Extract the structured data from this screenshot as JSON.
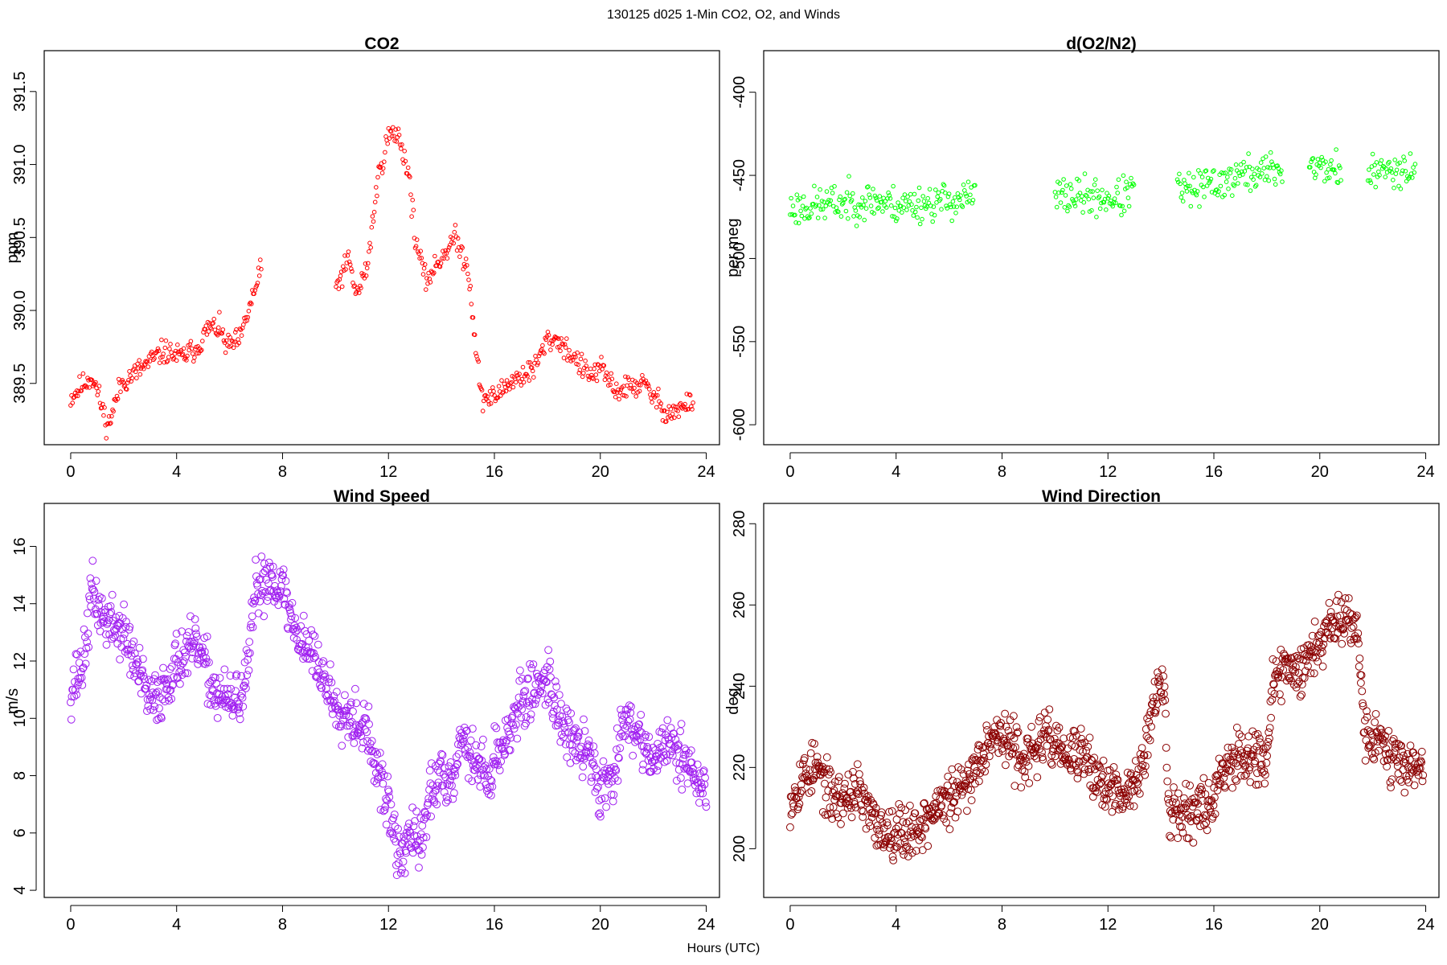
{
  "figure": {
    "suptitle": "130125   d025   1-Min CO2, O2, and Winds",
    "xlabel": "Hours (UTC)"
  },
  "colors": {
    "co2": "#ff0000",
    "o2": "#00ff00",
    "wind_speed": "#a020f0",
    "wind_direction": "#8b0000",
    "axis": "#000000"
  },
  "chart_data": [
    {
      "id": "co2",
      "type": "scatter",
      "title": "CO2",
      "xlabel": "",
      "ylabel": "ppm",
      "xlim": [
        -1,
        24.5
      ],
      "ylim": [
        389.08,
        391.78
      ],
      "xticks": [
        0,
        4,
        8,
        12,
        16,
        20,
        24
      ],
      "yticks": [
        389.5,
        390.0,
        390.5,
        391.0,
        391.5
      ],
      "ytick_labels": [
        "389.5",
        "390.0",
        "390.5",
        "391.0",
        "391.5"
      ],
      "gaps": [
        [
          7.2,
          10.0
        ]
      ],
      "anchors": [
        [
          0.0,
          389.4
        ],
        [
          0.5,
          389.5
        ],
        [
          0.8,
          389.55
        ],
        [
          1.0,
          389.45
        ],
        [
          1.4,
          389.2
        ],
        [
          1.9,
          389.5
        ],
        [
          2.5,
          389.58
        ],
        [
          3.0,
          389.65
        ],
        [
          3.5,
          389.72
        ],
        [
          4.2,
          389.68
        ],
        [
          4.8,
          389.75
        ],
        [
          5.2,
          389.88
        ],
        [
          5.6,
          389.88
        ],
        [
          5.9,
          389.75
        ],
        [
          6.4,
          389.8
        ],
        [
          6.8,
          390.05
        ],
        [
          7.2,
          390.28
        ],
        [
          10.0,
          390.15
        ],
        [
          10.5,
          390.35
        ],
        [
          10.8,
          390.1
        ],
        [
          11.2,
          390.3
        ],
        [
          11.6,
          390.9
        ],
        [
          12.0,
          391.2
        ],
        [
          12.4,
          391.2
        ],
        [
          12.8,
          390.9
        ],
        [
          13.0,
          390.5
        ],
        [
          13.4,
          390.2
        ],
        [
          14.5,
          390.5
        ],
        [
          15.0,
          390.3
        ],
        [
          15.5,
          389.4
        ],
        [
          16.0,
          389.4
        ],
        [
          16.5,
          389.5
        ],
        [
          17.0,
          389.55
        ],
        [
          17.5,
          389.6
        ],
        [
          18.0,
          389.8
        ],
        [
          18.4,
          389.8
        ],
        [
          19.6,
          389.55
        ],
        [
          20.0,
          389.6
        ],
        [
          20.6,
          389.45
        ],
        [
          21.6,
          389.5
        ],
        [
          22.5,
          389.3
        ],
        [
          23.0,
          389.32
        ],
        [
          23.5,
          389.38
        ]
      ],
      "noise": 0.05,
      "count": 700,
      "seed": 11
    },
    {
      "id": "o2",
      "type": "scatter",
      "title": "d(O2/N2)",
      "xlabel": "",
      "ylabel": "per meg",
      "xlim": [
        -1,
        24.5
      ],
      "ylim": [
        -612,
        -375
      ],
      "xticks": [
        0,
        4,
        8,
        12,
        16,
        20,
        24
      ],
      "yticks": [
        -600,
        -550,
        -500,
        -450,
        -400
      ],
      "ytick_labels": [
        "-600",
        "-550",
        "-500",
        "-450",
        "-400"
      ],
      "gaps": [
        [
          7.0,
          10.0
        ],
        [
          13.0,
          14.6
        ],
        [
          18.6,
          19.6
        ],
        [
          20.8,
          21.8
        ]
      ],
      "anchors": [
        [
          0.0,
          -470
        ],
        [
          1.5,
          -467
        ],
        [
          3.2,
          -465
        ],
        [
          4.0,
          -468
        ],
        [
          5.5,
          -466
        ],
        [
          7.0,
          -463
        ],
        [
          10.0,
          -462
        ],
        [
          12.5,
          -464
        ],
        [
          13.5,
          -450
        ],
        [
          15.0,
          -460
        ],
        [
          16.0,
          -455
        ],
        [
          17.0,
          -450
        ],
        [
          18.6,
          -446
        ],
        [
          19.6,
          -444
        ],
        [
          20.8,
          -447
        ],
        [
          21.8,
          -450
        ],
        [
          23.0,
          -445
        ],
        [
          23.6,
          -447
        ]
      ],
      "noise": 7,
      "count": 650,
      "seed": 23
    },
    {
      "id": "wind_speed",
      "type": "scatter",
      "title": "Wind Speed",
      "xlabel": "",
      "ylabel": "m/s",
      "xlim": [
        -1,
        24.5
      ],
      "ylim": [
        3.75,
        17.5
      ],
      "xticks": [
        0,
        4,
        8,
        12,
        16,
        20,
        24
      ],
      "yticks": [
        4,
        6,
        8,
        10,
        12,
        14,
        16
      ],
      "ytick_labels": [
        "4",
        "6",
        "8",
        "10",
        "12",
        "14",
        "16"
      ],
      "gaps": [],
      "anchors": [
        [
          0.0,
          11.0
        ],
        [
          0.5,
          12.0
        ],
        [
          0.8,
          14.5
        ],
        [
          1.2,
          13.5
        ],
        [
          2.0,
          13.0
        ],
        [
          2.6,
          11.5
        ],
        [
          3.0,
          10.5
        ],
        [
          3.5,
          11.0
        ],
        [
          4.0,
          12.0
        ],
        [
          4.8,
          12.5
        ],
        [
          5.4,
          11.0
        ],
        [
          6.0,
          10.5
        ],
        [
          6.6,
          11.0
        ],
        [
          7.0,
          14.5
        ],
        [
          7.5,
          15.0
        ],
        [
          8.0,
          14.5
        ],
        [
          8.5,
          13.0
        ],
        [
          9.0,
          12.5
        ],
        [
          9.5,
          11.5
        ],
        [
          10.0,
          10.5
        ],
        [
          10.8,
          10.0
        ],
        [
          11.2,
          9.5
        ],
        [
          11.6,
          8.0
        ],
        [
          12.0,
          7.0
        ],
        [
          12.4,
          5.0
        ],
        [
          12.8,
          6.0
        ],
        [
          13.2,
          5.5
        ],
        [
          13.6,
          7.5
        ],
        [
          14.0,
          8.0
        ],
        [
          14.4,
          8.0
        ],
        [
          14.8,
          9.5
        ],
        [
          15.2,
          8.5
        ],
        [
          15.8,
          8.0
        ],
        [
          16.0,
          8.5
        ],
        [
          16.5,
          9.5
        ],
        [
          17.0,
          10.5
        ],
        [
          17.5,
          11.0
        ],
        [
          18.0,
          11.5
        ],
        [
          18.5,
          10.0
        ],
        [
          19.0,
          9.0
        ],
        [
          19.6,
          8.8
        ],
        [
          20.0,
          7.5
        ],
        [
          20.5,
          8.0
        ],
        [
          20.8,
          10.0
        ],
        [
          21.5,
          9.5
        ],
        [
          22.0,
          8.5
        ],
        [
          22.5,
          9.0
        ],
        [
          23.0,
          9.0
        ],
        [
          23.5,
          8.0
        ],
        [
          24.0,
          7.5
        ]
      ],
      "noise": 0.6,
      "count": 1100,
      "seed": 37
    },
    {
      "id": "wind_direction",
      "type": "scatter",
      "title": "Wind Direction",
      "xlabel": "",
      "ylabel": "deg",
      "xlim": [
        -1,
        24.5
      ],
      "ylim": [
        188,
        285
      ],
      "xticks": [
        0,
        4,
        8,
        12,
        16,
        20,
        24
      ],
      "yticks": [
        200,
        220,
        240,
        260,
        280
      ],
      "ytick_labels": [
        "200",
        "220",
        "240",
        "260",
        "280"
      ],
      "gaps": [],
      "anchors": [
        [
          0.0,
          212
        ],
        [
          0.5,
          218
        ],
        [
          1.0,
          220
        ],
        [
          1.5,
          213
        ],
        [
          2.0,
          212
        ],
        [
          2.5,
          215
        ],
        [
          3.0,
          208
        ],
        [
          3.5,
          204
        ],
        [
          4.0,
          205
        ],
        [
          4.5,
          204
        ],
        [
          5.0,
          206
        ],
        [
          5.5,
          210
        ],
        [
          6.0,
          212
        ],
        [
          6.5,
          214
        ],
        [
          7.0,
          220
        ],
        [
          7.5,
          228
        ],
        [
          8.0,
          228
        ],
        [
          8.5,
          224
        ],
        [
          9.0,
          222
        ],
        [
          9.5,
          227
        ],
        [
          10.0,
          226
        ],
        [
          10.5,
          222
        ],
        [
          11.0,
          224
        ],
        [
          11.5,
          218
        ],
        [
          12.0,
          215
        ],
        [
          12.5,
          212
        ],
        [
          13.0,
          216
        ],
        [
          13.4,
          224
        ],
        [
          13.8,
          238
        ],
        [
          14.1,
          240
        ],
        [
          14.3,
          210
        ],
        [
          15.0,
          210
        ],
        [
          15.5,
          210
        ],
        [
          16.0,
          212
        ],
        [
          16.3,
          220
        ],
        [
          17.0,
          224
        ],
        [
          17.5,
          223
        ],
        [
          18.0,
          222
        ],
        [
          18.3,
          243
        ],
        [
          18.8,
          244
        ],
        [
          19.4,
          245
        ],
        [
          20.0,
          252
        ],
        [
          20.5,
          256
        ],
        [
          21.0,
          258
        ],
        [
          21.4,
          255
        ],
        [
          21.7,
          228
        ],
        [
          22.0,
          228
        ],
        [
          22.5,
          224
        ],
        [
          23.0,
          221
        ],
        [
          23.5,
          221
        ],
        [
          23.9,
          220
        ]
      ],
      "noise": 4,
      "count": 1100,
      "seed": 53
    }
  ]
}
